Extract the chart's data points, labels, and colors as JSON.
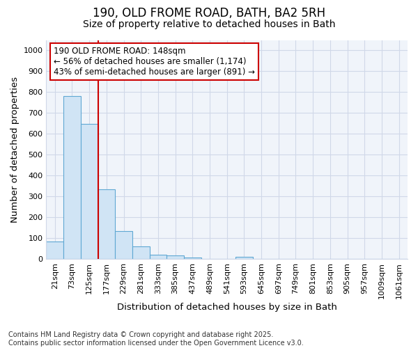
{
  "title_line1": "190, OLD FROME ROAD, BATH, BA2 5RH",
  "title_line2": "Size of property relative to detached houses in Bath",
  "xlabel": "Distribution of detached houses by size in Bath",
  "ylabel": "Number of detached properties",
  "categories": [
    "21sqm",
    "73sqm",
    "125sqm",
    "177sqm",
    "229sqm",
    "281sqm",
    "333sqm",
    "385sqm",
    "437sqm",
    "489sqm",
    "541sqm",
    "593sqm",
    "645sqm",
    "697sqm",
    "749sqm",
    "801sqm",
    "853sqm",
    "905sqm",
    "957sqm",
    "1009sqm",
    "1061sqm"
  ],
  "values": [
    85,
    780,
    648,
    335,
    135,
    60,
    22,
    18,
    8,
    0,
    0,
    10,
    0,
    0,
    0,
    0,
    0,
    0,
    0,
    0,
    0
  ],
  "bar_color": "#d0e4f5",
  "bar_edgecolor": "#5fa8d3",
  "vline_color": "#cc0000",
  "annotation_text": "190 OLD FROME ROAD: 148sqm\n← 56% of detached houses are smaller (1,174)\n43% of semi-detached houses are larger (891) →",
  "annotation_box_facecolor": "#ffffff",
  "annotation_box_edgecolor": "#cc0000",
  "ylim": [
    0,
    1050
  ],
  "yticks": [
    0,
    100,
    200,
    300,
    400,
    500,
    600,
    700,
    800,
    900,
    1000
  ],
  "background_color": "#ffffff",
  "plot_bg_color": "#f0f4fa",
  "grid_color": "#d0d8e8",
  "footer_line1": "Contains HM Land Registry data © Crown copyright and database right 2025.",
  "footer_line2": "Contains public sector information licensed under the Open Government Licence v3.0.",
  "footer_fontsize": 7,
  "title_fontsize": 12,
  "subtitle_fontsize": 10,
  "tick_fontsize": 8,
  "label_fontsize": 9.5,
  "annot_fontsize": 8.5
}
